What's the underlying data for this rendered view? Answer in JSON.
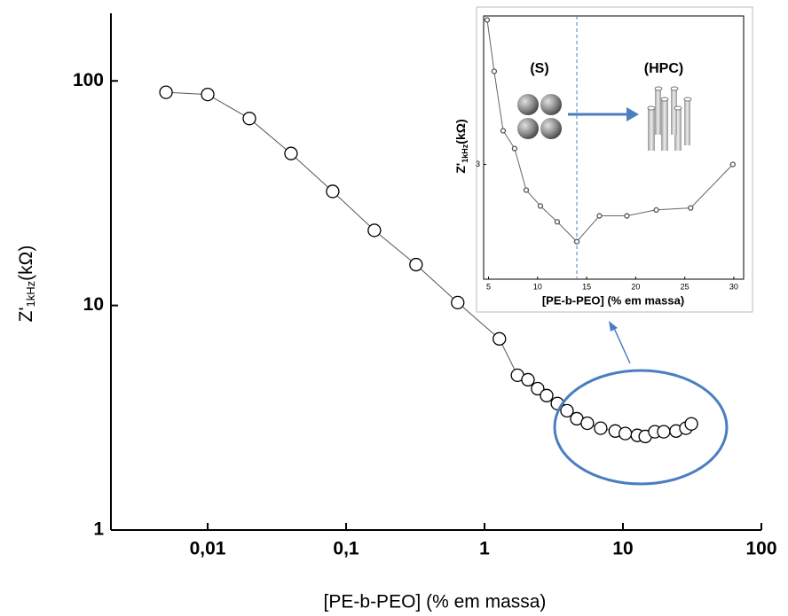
{
  "chart_data": [
    {
      "type": "line",
      "x_scale": "log",
      "y_scale": "log",
      "xlabel": "[PE-b-PEO] (% em massa)",
      "ylabel_parts": [
        "Z'",
        "1kHz",
        "(kΩ)"
      ],
      "xlim": [
        0.002,
        100
      ],
      "ylim": [
        1,
        200
      ],
      "xticks": [
        {
          "value": 0.01,
          "label": "0,01"
        },
        {
          "value": 0.1,
          "label": "0,1"
        },
        1,
        10,
        100
      ],
      "yticks": [
        1,
        10,
        100
      ],
      "line_color": "#555555",
      "marker_fill": "#ffffff",
      "marker_stroke": "#000000",
      "x": [
        0.005,
        0.01,
        0.02,
        0.04,
        0.08,
        0.16,
        0.32,
        0.64,
        1.28,
        1.73,
        2.06,
        2.42,
        2.81,
        3.36,
        3.94,
        4.64,
        5.53,
        6.9,
        8.8,
        10.4,
        12.7,
        14.5,
        17.0,
        19.7,
        24.2,
        28.5,
        31.2
      ],
      "values": [
        89,
        87,
        68,
        47.5,
        32.2,
        21.6,
        15.2,
        10.3,
        7.1,
        4.89,
        4.67,
        4.26,
        3.97,
        3.66,
        3.4,
        3.13,
        2.99,
        2.84,
        2.76,
        2.69,
        2.64,
        2.61,
        2.74,
        2.74,
        2.76,
        2.84,
        2.97
      ]
    },
    {
      "type": "line",
      "x_scale": "linear",
      "y_scale": "linear",
      "xlabel": "[PE-b-PEO] (% em massa)",
      "ylabel_parts": [
        "Z'",
        "1kHz",
        "(kΩ)"
      ],
      "xlim": [
        4.5,
        31
      ],
      "ylim": [
        2.42,
        3.75
      ],
      "xticks": [
        5,
        10,
        15,
        20,
        25,
        30
      ],
      "yticks": [
        3
      ],
      "reference_x": 14,
      "annotations": [
        "(S)",
        "(HPC)"
      ],
      "line_color": "#666666",
      "marker_fill": "#ffffff",
      "marker_stroke": "#555555",
      "x": [
        4.86,
        5.58,
        6.49,
        7.66,
        8.84,
        10.29,
        12.0,
        14.0,
        16.3,
        19.1,
        22.1,
        25.6,
        29.9
      ],
      "values": [
        3.73,
        3.47,
        3.17,
        3.08,
        2.87,
        2.79,
        2.71,
        2.61,
        2.74,
        2.74,
        2.77,
        2.78,
        3.0
      ]
    }
  ]
}
